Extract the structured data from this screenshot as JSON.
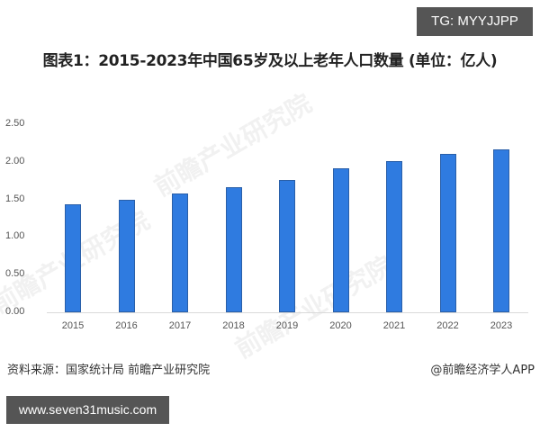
{
  "badges": {
    "top_right": "TG: MYYJJPP",
    "bottom_left": "www.seven31music.com"
  },
  "title": "图表1：2015-2023年中国65岁及以上老年人口数量 (单位：亿人)",
  "footer": {
    "source": "资料来源：国家统计局 前瞻产业研究院",
    "credit": "@前瞻经济学人APP"
  },
  "watermark": "前瞻产业研究院",
  "colors": {
    "bar": "#2f7be0",
    "bar_border": "#2a5fa8",
    "axis": "#d9d9d9"
  },
  "chart_data": {
    "type": "bar",
    "title": "图表1：2015-2023年中国65岁及以上老年人口数量 (单位：亿人)",
    "xlabel": "",
    "ylabel": "",
    "unit": "亿人",
    "categories": [
      "2015",
      "2016",
      "2017",
      "2018",
      "2019",
      "2020",
      "2021",
      "2022",
      "2023"
    ],
    "values": [
      1.44,
      1.5,
      1.58,
      1.66,
      1.76,
      1.91,
      2.01,
      2.1,
      2.17
    ],
    "ylim": [
      0,
      2.5
    ],
    "yticks": [
      "0.00",
      "0.50",
      "1.00",
      "1.50",
      "2.00",
      "2.50"
    ],
    "grid": false,
    "legend": "none"
  }
}
